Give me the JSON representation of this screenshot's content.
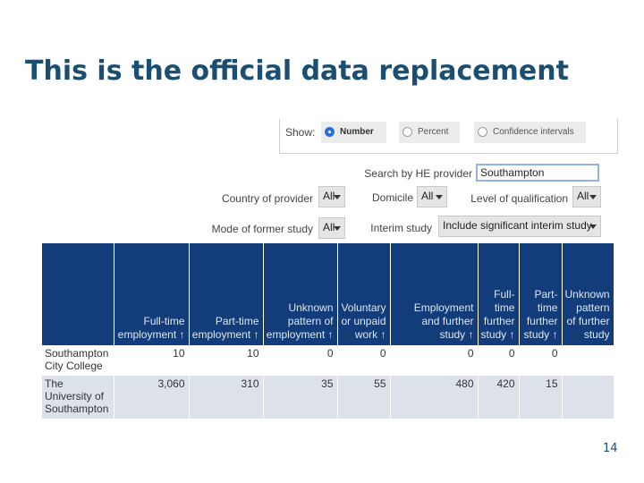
{
  "slide": {
    "title": "This is the official data replacement",
    "page_number": "14"
  },
  "show": {
    "label": "Show:",
    "options": [
      {
        "label": "Number",
        "selected": true
      },
      {
        "label": "Percent",
        "selected": false
      },
      {
        "label": "Confidence intervals",
        "selected": false
      }
    ]
  },
  "search": {
    "label": "Search by HE provider",
    "value": "Southampton"
  },
  "filters": {
    "country": {
      "label": "Country of provider",
      "value": "All"
    },
    "domicile": {
      "label": "Domicile",
      "value": "All"
    },
    "level": {
      "label": "Level of qualification",
      "value": "All"
    },
    "mode": {
      "label": "Mode of former study",
      "value": "All"
    },
    "interim": {
      "label": "Interim study",
      "value": "Include significant interim study"
    }
  },
  "table": {
    "columns": [
      "",
      "Full-time employment ↑",
      "Part-time employment ↑",
      "Unknown pattern of employment ↑",
      "Voluntary or unpaid work ↑",
      "Employment and further study ↑",
      "Full-time further study ↑",
      "Part-time further study ↑",
      "Unknown pattern of further study"
    ],
    "rows": [
      {
        "name": "Southampton City College",
        "values": [
          "10",
          "10",
          "0",
          "0",
          "0",
          "0",
          "0",
          ""
        ]
      },
      {
        "name": "The University of Southampton",
        "values": [
          "3,060",
          "310",
          "35",
          "55",
          "480",
          "420",
          "15",
          ""
        ]
      }
    ]
  }
}
